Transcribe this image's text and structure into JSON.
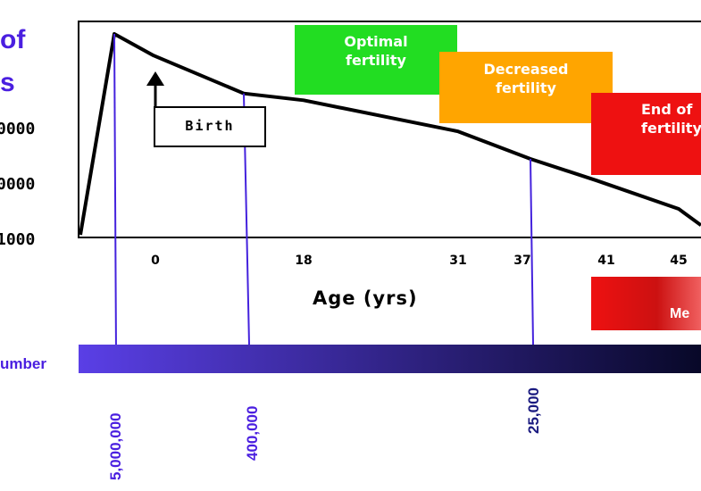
{
  "heading": {
    "line1": "of",
    "line2": "s"
  },
  "chart_data": {
    "type": "line",
    "xlabel": "Age (yrs)",
    "x_ticks": [
      "0",
      "18",
      "31",
      "37",
      "41",
      "45"
    ],
    "y_ticks": [
      "0000",
      "0000",
      "1000"
    ],
    "series": [
      {
        "points": [
          {
            "x": "prenatal start",
            "y": 0
          },
          {
            "x": "prenatal peak",
            "y": 5000000
          },
          {
            "x": "0",
            "y": 2000000
          },
          {
            "x": "11",
            "y": 400000
          },
          {
            "x": "18",
            "y": 300000
          },
          {
            "x": "31",
            "y": 80000
          },
          {
            "x": "37",
            "y": 25000
          },
          {
            "x": "41",
            "y": 10000
          },
          {
            "x": "45",
            "y": 3000
          },
          {
            "x": "47",
            "y": 1500
          }
        ]
      }
    ],
    "annotations": {
      "birth": "Birth",
      "optimal": [
        "Optimal",
        "fertility"
      ],
      "decreased": [
        "Decreased",
        "fertility"
      ],
      "end": [
        "End of",
        "fertility"
      ],
      "menopause": "Me"
    },
    "colors": {
      "optimal": "#22dd22",
      "decreased": "#ffa500",
      "end": "#ee1111",
      "guide": "#4422dd",
      "curve": "#000000"
    }
  },
  "number_bar": {
    "label": "umber",
    "markers": [
      "5,000,000",
      "400,000",
      "25,000"
    ],
    "gradient": [
      "#5a3fe6",
      "#080828"
    ]
  }
}
